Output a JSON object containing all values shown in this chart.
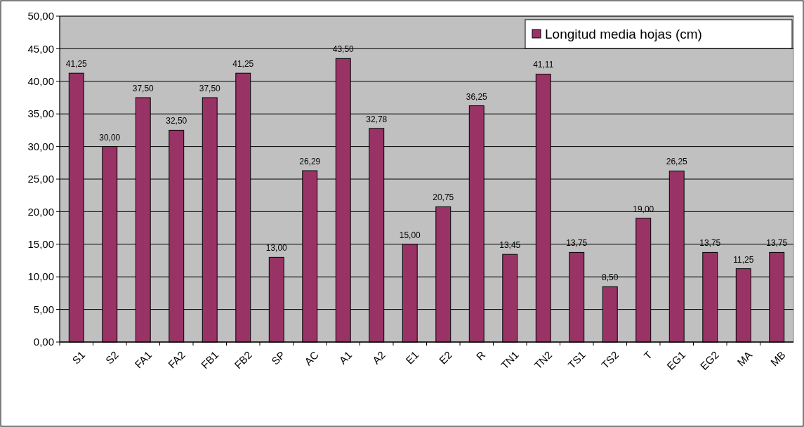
{
  "chart_data": {
    "type": "bar",
    "categories": [
      "S1",
      "S2",
      "FA1",
      "FA2",
      "FB1",
      "FB2",
      "SP",
      "AC",
      "A1",
      "A2",
      "E1",
      "E2",
      "R",
      "TN1",
      "TN2",
      "TS1",
      "TS2",
      "T",
      "EG1",
      "EG2",
      "MA",
      "MB"
    ],
    "series": [
      {
        "name": "Longitud media hojas (cm)",
        "color": "#993366",
        "values": [
          41.25,
          30.0,
          37.5,
          32.5,
          37.5,
          41.25,
          13.0,
          26.29,
          43.5,
          32.78,
          15.0,
          20.75,
          36.25,
          13.45,
          41.11,
          13.75,
          8.5,
          19.0,
          26.25,
          13.75,
          11.25,
          13.75
        ],
        "value_labels": [
          "41,25",
          "30,00",
          "37,50",
          "32,50",
          "37,50",
          "41,25",
          "13,00",
          "26,29",
          "43,50",
          "32,78",
          "15,00",
          "20,75",
          "36,25",
          "13,45",
          "41,11",
          "13,75",
          "8,50",
          "19,00",
          "26,25",
          "13,75",
          "11,25",
          "13,75"
        ]
      }
    ],
    "ylim": [
      0,
      50
    ],
    "yticks": [
      {
        "value": 0,
        "label": "0,00"
      },
      {
        "value": 5,
        "label": "5,00"
      },
      {
        "value": 10,
        "label": "10,00"
      },
      {
        "value": 15,
        "label": "15,00"
      },
      {
        "value": 20,
        "label": "20,00"
      },
      {
        "value": 25,
        "label": "25,00"
      },
      {
        "value": 30,
        "label": "30,00"
      },
      {
        "value": 35,
        "label": "35,00"
      },
      {
        "value": 40,
        "label": "40,00"
      },
      {
        "value": 45,
        "label": "45,00"
      },
      {
        "value": 50,
        "label": "50,00"
      }
    ],
    "grid": "y",
    "legend": "top right"
  }
}
